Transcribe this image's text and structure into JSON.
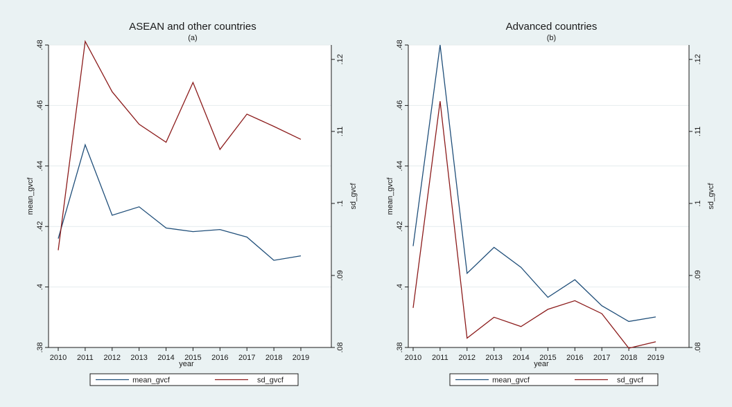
{
  "chart_data": [
    {
      "type": "line",
      "title": "ASEAN and other countries",
      "subtitle": "(a)",
      "xlabel": "year",
      "ylabel_left": "mean_gvcf",
      "ylabel_right": "sd_gvcf",
      "x": [
        2010,
        2011,
        2012,
        2013,
        2014,
        2015,
        2016,
        2017,
        2018,
        2019
      ],
      "ylim_left": [
        0.38,
        0.48
      ],
      "ylim_right": [
        0.08,
        0.122
      ],
      "yticks_left": [
        0.38,
        0.4,
        0.42,
        0.44,
        0.46,
        0.48
      ],
      "yticks_left_labels": [
        ".38",
        ".4",
        ".42",
        ".44",
        ".46",
        ".48"
      ],
      "yticks_right": [
        0.08,
        0.09,
        0.1,
        0.11,
        0.12
      ],
      "yticks_right_labels": [
        ".08",
        ".09",
        ".1",
        ".11",
        ".12"
      ],
      "grid": true,
      "legend_position": "bottom",
      "series": [
        {
          "name": "mean_gvcf",
          "axis": "left",
          "color": "#1f4e79",
          "values": [
            0.416,
            0.447,
            0.4237,
            0.4265,
            0.4195,
            0.4183,
            0.419,
            0.4165,
            0.4088,
            0.4103
          ]
        },
        {
          "name": "sd_gvcf",
          "axis": "right",
          "color": "#8b1a1a",
          "values": [
            0.0935,
            0.1225,
            0.1155,
            0.111,
            0.1085,
            0.1168,
            0.1075,
            0.1124,
            0.1107,
            0.1089
          ]
        }
      ]
    },
    {
      "type": "line",
      "title": "Advanced countries",
      "subtitle": "(b)",
      "xlabel": "year",
      "ylabel_left": "mean_gvcf",
      "ylabel_right": "sd_gvcf",
      "x": [
        2010,
        2011,
        2012,
        2013,
        2014,
        2015,
        2016,
        2017,
        2018,
        2019
      ],
      "ylim_left": [
        0.38,
        0.48
      ],
      "ylim_right": [
        0.08,
        0.122
      ],
      "yticks_left": [
        0.38,
        0.4,
        0.42,
        0.44,
        0.46,
        0.48
      ],
      "yticks_left_labels": [
        ".38",
        ".4",
        ".42",
        ".44",
        ".46",
        ".48"
      ],
      "yticks_right": [
        0.08,
        0.09,
        0.1,
        0.11,
        0.12
      ],
      "yticks_right_labels": [
        ".08",
        ".09",
        ".1",
        ".11",
        ".12"
      ],
      "grid": true,
      "legend_position": "bottom",
      "series": [
        {
          "name": "mean_gvcf",
          "axis": "left",
          "color": "#1f4e79",
          "values": [
            0.4135,
            0.48,
            0.4045,
            0.4131,
            0.4065,
            0.3966,
            0.4024,
            0.3938,
            0.3886,
            0.3901
          ]
        },
        {
          "name": "sd_gvcf",
          "axis": "right",
          "color": "#8b1a1a",
          "values": [
            0.0855,
            0.1142,
            0.0813,
            0.0842,
            0.0829,
            0.0853,
            0.0865,
            0.0847,
            0.0799,
            0.0808
          ]
        }
      ]
    }
  ]
}
